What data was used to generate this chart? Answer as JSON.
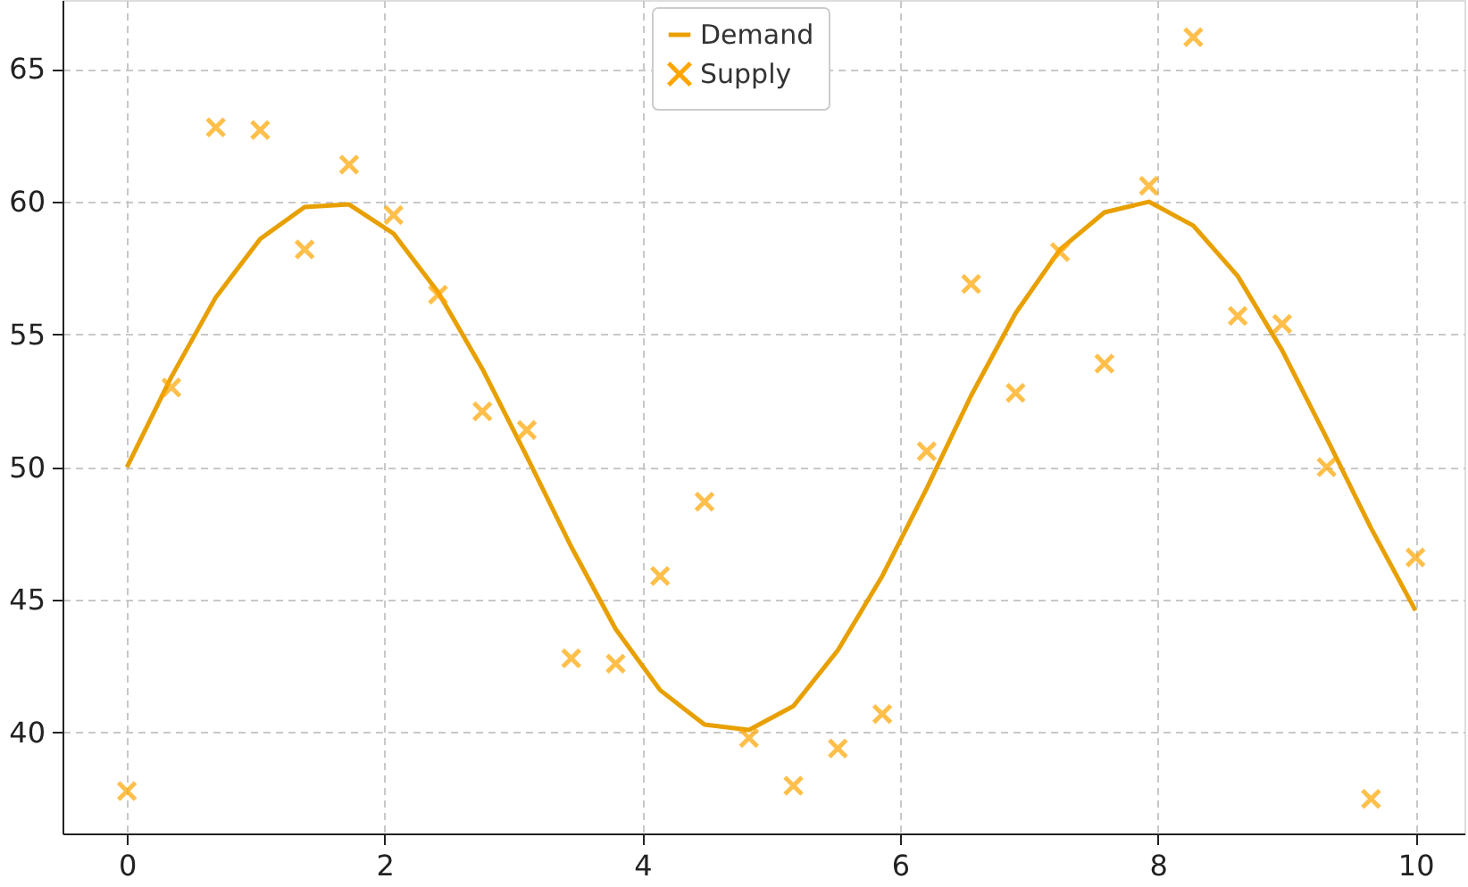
{
  "chart_data": {
    "type": "line",
    "x": [
      0,
      0.3448,
      0.6897,
      1.0345,
      1.3793,
      1.7241,
      2.069,
      2.4138,
      2.7586,
      3.1034,
      3.4483,
      3.7931,
      4.1379,
      4.4828,
      4.8276,
      5.1724,
      5.5172,
      5.8621,
      6.2069,
      6.5517,
      6.8966,
      7.2414,
      7.5862,
      7.931,
      8.2759,
      8.6207,
      8.9655,
      9.3103,
      9.6552,
      10
    ],
    "series": [
      {
        "name": "Demand",
        "color": "#e8a000",
        "values": [
          50,
          53.4,
          56.4,
          58.6,
          59.8,
          59.9,
          58.8,
          56.6,
          53.7,
          50.4,
          47.0,
          43.9,
          41.6,
          40.3,
          40.1,
          41.0,
          43.1,
          45.9,
          49.2,
          52.7,
          55.8,
          58.2,
          59.6,
          60.0,
          59.1,
          57.2,
          54.4,
          51.1,
          47.7,
          44.6
        ]
      },
      {
        "name": "Supply",
        "type": "scatter",
        "marker": "cross",
        "color": "#ffa500",
        "values": [
          37.8,
          53.0,
          62.8,
          62.7,
          58.2,
          61.4,
          59.5,
          56.5,
          52.1,
          51.4,
          42.8,
          42.6,
          45.9,
          48.7,
          39.8,
          38.0,
          39.4,
          40.7,
          50.6,
          56.9,
          52.8,
          58.1,
          53.9,
          60.6,
          66.2,
          55.7,
          55.4,
          50.0,
          37.5,
          46.6
        ]
      }
    ],
    "xlim": [
      -0.5,
      10.38
    ],
    "xticks": [
      0,
      2,
      4,
      6,
      8,
      10
    ],
    "ylim": [
      36.2,
      67.6
    ],
    "yticks": [
      40,
      45,
      50,
      55,
      60,
      65
    ],
    "grid": true,
    "legend": "top"
  }
}
